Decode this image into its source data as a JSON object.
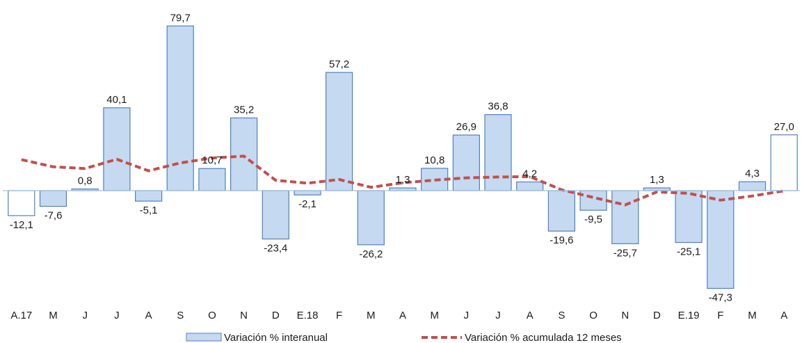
{
  "chart_data": {
    "type": "bar",
    "categories": [
      "A.17",
      "M",
      "J",
      "J",
      "A",
      "S",
      "O",
      "N",
      "D",
      "E.18",
      "F",
      "M",
      "A",
      "M",
      "J",
      "J",
      "A",
      "S",
      "O",
      "N",
      "D",
      "E.19",
      "F",
      "M",
      "A"
    ],
    "series": [
      {
        "name": "Variación % interanual",
        "type": "bar",
        "values": [
          -12.1,
          -7.6,
          0.8,
          40.1,
          -5.1,
          79.7,
          10.7,
          35.2,
          -23.4,
          -2.1,
          57.2,
          -26.2,
          1.3,
          10.8,
          26.9,
          36.8,
          4.2,
          -19.6,
          -9.5,
          -25.7,
          1.3,
          -25.1,
          -47.3,
          4.3,
          27.0
        ],
        "labels": [
          "-12,1",
          "-7,6",
          "0,8",
          "40,1",
          "-5,1",
          "79,7",
          "10,7",
          "35,2",
          "-23,4",
          "-2,1",
          "57,2",
          "-26,2",
          "1,3",
          "10,8",
          "26,9",
          "36,8",
          "4,2",
          "-19,6",
          "-9,5",
          "-25,7",
          "1,3",
          "-25,1",
          "-47,3",
          "4,3",
          "27,0"
        ],
        "highlight": [
          0,
          24
        ]
      },
      {
        "name": "Variación % acumulada 12 meses",
        "type": "line",
        "values": [
          15,
          11.5,
          10.7,
          15.2,
          9.6,
          13.4,
          15.8,
          16.7,
          5.0,
          3.6,
          5.4,
          1.6,
          3.8,
          5.1,
          6.2,
          6.6,
          6.8,
          0.4,
          -3.3,
          -6.9,
          -0.6,
          -1.3,
          -4.6,
          -2.6,
          -0.1
        ]
      }
    ],
    "ylim": [
      -50,
      83
    ],
    "grid": false,
    "legend_position": "bottom",
    "colors": {
      "bar_fill": "#c5d9f1",
      "bar_stroke": "#4f81bd",
      "highlight_fill": "#ffffff",
      "line": "#c0504d",
      "axis": "#9dc3e6"
    }
  }
}
